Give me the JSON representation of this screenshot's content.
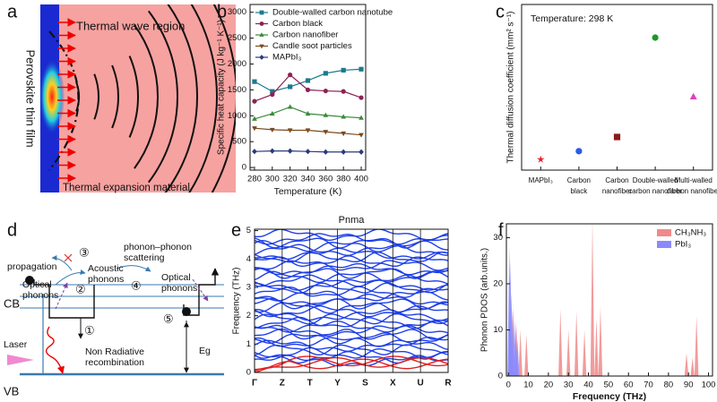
{
  "panel_labels": [
    "a",
    "b",
    "c",
    "d",
    "e",
    "f"
  ],
  "diagram_a": {
    "wave_region": "Thermal wave  region",
    "expansion": "Thermal expansion material",
    "film": "Perovskite thin film"
  },
  "diagram_d": {
    "propagation": "propagation",
    "n3": "③",
    "acoustic": "Acoustic phonons",
    "optical_left": "Optical phonons",
    "n2": "②",
    "scattering": "phonon–phonon scattering",
    "n4": "④",
    "optical_right": "Optical phonons",
    "cb": "CB",
    "n5": "⑤",
    "n1": "①",
    "laser": "Laser",
    "nonrad": "Non Radiative recombination",
    "eg": "Eg",
    "vb": "VB"
  },
  "chart_data": [
    {
      "type": "line",
      "xlabel": "Temperature (K)",
      "ylabel": "Specific heat capacity (J kg⁻¹ K⁻¹)",
      "x": [
        280,
        300,
        320,
        340,
        360,
        380,
        400
      ],
      "xlim": [
        275,
        405
      ],
      "xticks": [
        280,
        300,
        320,
        340,
        360,
        380,
        400
      ],
      "ylim": [
        -50,
        3150
      ],
      "yticks": [
        0,
        500,
        1000,
        1500,
        2000,
        2500,
        3000
      ],
      "legend": "upper left",
      "series": [
        {
          "name": "Double-walled carbon nanotube",
          "color": "#1b7a8e",
          "marker": "s",
          "values": [
            1660,
            1470,
            1560,
            1680,
            1820,
            1880,
            1900
          ]
        },
        {
          "name": "Carbon black",
          "color": "#8b2252",
          "marker": "o",
          "values": [
            1280,
            1410,
            1790,
            1500,
            1480,
            1470,
            1350
          ]
        },
        {
          "name": "Carbon nanofiber",
          "color": "#3a8a3a",
          "marker": "^",
          "values": [
            940,
            1040,
            1170,
            1040,
            1010,
            980,
            960
          ]
        },
        {
          "name": "Candle soot particles",
          "color": "#7a4a1e",
          "marker": "v",
          "values": [
            760,
            730,
            720,
            720,
            690,
            660,
            630
          ]
        },
        {
          "name": "MAPbI₃",
          "color": "#2a3a7a",
          "marker": "D",
          "values": [
            310,
            320,
            320,
            310,
            300,
            300,
            300
          ]
        }
      ]
    },
    {
      "type": "scatter",
      "ylabel": "Thermal diffusion coefficient (mm² s⁻¹)",
      "annotation": "Temperature: 298 K",
      "categories": [
        "MAPbI₃",
        "Carbon black",
        "Carbon nanofiber",
        "Double-walled carbon nanofiber",
        "Multi-walled carbon nanofiber"
      ],
      "values": [
        0.14,
        0.21,
        0.33,
        1.17,
        0.67
      ],
      "colors": [
        "#e8202a",
        "#2a5ae8",
        "#8b1a1a",
        "#1a9a2a",
        "#e040c0"
      ],
      "markers": [
        "*",
        "o",
        "s",
        "o",
        "^"
      ],
      "ylim": [
        0.05,
        1.45
      ]
    },
    {
      "type": "band",
      "title": "Pnma",
      "ylabel": "Frequency (THz)",
      "categories": [
        "Γ",
        "Z",
        "T",
        "Y",
        "S",
        "X",
        "U",
        "R"
      ],
      "ylim": [
        0,
        5.05
      ],
      "yticks": [
        0,
        1,
        2,
        3,
        4,
        5
      ]
    },
    {
      "type": "spike",
      "xlabel": "Frequency (THz)",
      "ylabel": "Phonon PDOS (arb.units.)",
      "xlim": [
        -1,
        102
      ],
      "xticks": [
        0,
        10,
        20,
        30,
        40,
        50,
        60,
        70,
        80,
        90,
        100
      ],
      "ylim": [
        0,
        33
      ],
      "yticks": [
        0,
        10,
        20,
        30
      ],
      "legend": "upper right",
      "series": [
        {
          "name": "CH₃NH₃",
          "color": "#f08a8a",
          "x": [
            2,
            4,
            6,
            9,
            26,
            30,
            34,
            38,
            42,
            44,
            46,
            89,
            92,
            94
          ],
          "values": [
            14,
            11,
            10,
            9,
            14.5,
            10,
            14,
            10,
            34,
            12.5,
            15,
            5,
            4,
            13
          ]
        },
        {
          "name": "PbI₃",
          "color": "#8a8aff",
          "x": [
            0.5,
            1,
            1.5,
            2.5,
            3.5,
            4.5
          ],
          "values": [
            28,
            25,
            18,
            15,
            12,
            8
          ]
        }
      ]
    }
  ]
}
